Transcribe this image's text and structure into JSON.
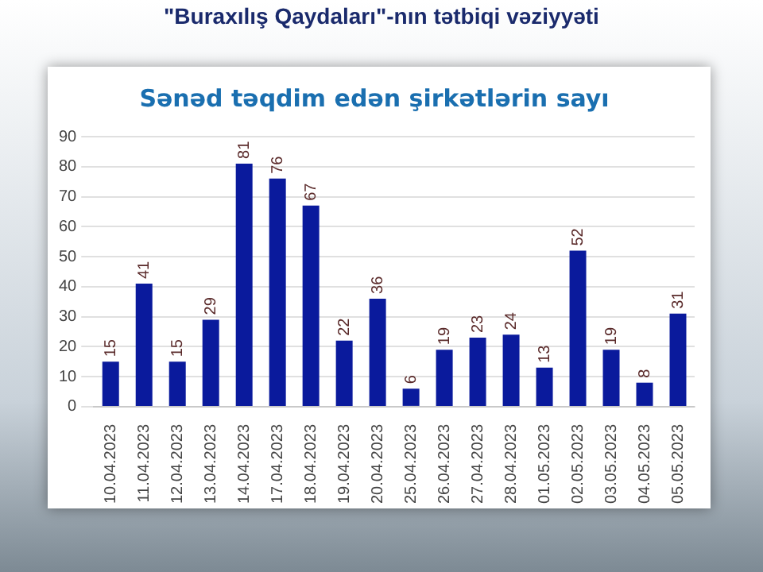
{
  "chart_data": {
    "type": "bar",
    "title": "Sənəd təqdim edən şirkətlərin sayı",
    "annotations": [
      "\"Buraxılış Qaydaları\"-nın tətbiqi vəziyyəti"
    ],
    "categories": [
      "10.04.2023",
      "11.04.2023",
      "12.04.2023",
      "13.04.2023",
      "14.04.2023",
      "17.04.2023",
      "18.04.2023",
      "19.04.2023",
      "20.04.2023",
      "25.04.2023",
      "26.04.2023",
      "27.04.2023",
      "28.04.2023",
      "01.05.2023",
      "02.05.2023",
      "03.05.2023",
      "04.05.2023",
      "05.05.2023"
    ],
    "values": [
      15,
      41,
      15,
      29,
      81,
      76,
      67,
      22,
      36,
      6,
      19,
      23,
      24,
      13,
      52,
      19,
      8,
      31
    ],
    "color": "#0a1a9c",
    "ylim": [
      0,
      90
    ],
    "yticks": [
      0,
      10,
      20,
      30,
      40,
      50,
      60,
      70,
      80,
      90
    ],
    "grid": "y",
    "legend": false,
    "data_labels": true
  }
}
